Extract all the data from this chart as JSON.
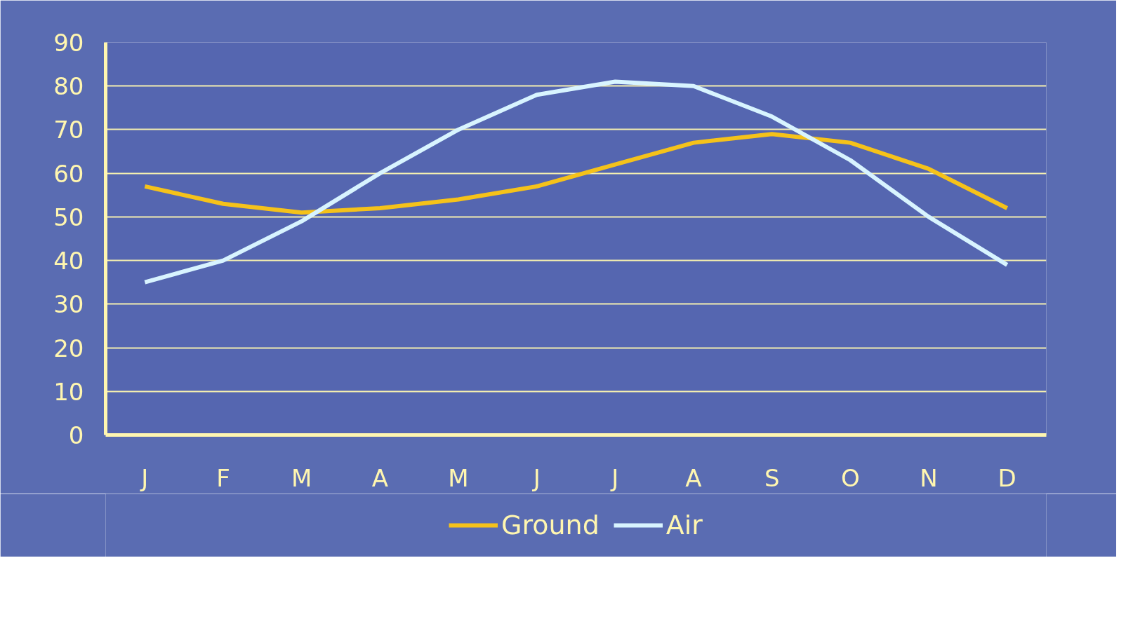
{
  "chart_data": {
    "type": "line",
    "categories": [
      "J",
      "F",
      "M",
      "A",
      "M",
      "J",
      "J",
      "A",
      "S",
      "O",
      "N",
      "D"
    ],
    "series": [
      {
        "name": "Ground",
        "color": "#f5c21a",
        "values": [
          57,
          53,
          51,
          52,
          54,
          57,
          62,
          67,
          69,
          67,
          61,
          52
        ]
      },
      {
        "name": "Air",
        "color": "#d8f4ff",
        "values": [
          35,
          40,
          49,
          60,
          70,
          78,
          81,
          80,
          73,
          63,
          50,
          39
        ]
      }
    ],
    "ylim": [
      0,
      90
    ],
    "yticks": [
      0,
      10,
      20,
      30,
      40,
      50,
      60,
      70,
      80,
      90
    ],
    "grid": "y",
    "legend": "bottom",
    "marker": "none",
    "line_style": "solid"
  }
}
